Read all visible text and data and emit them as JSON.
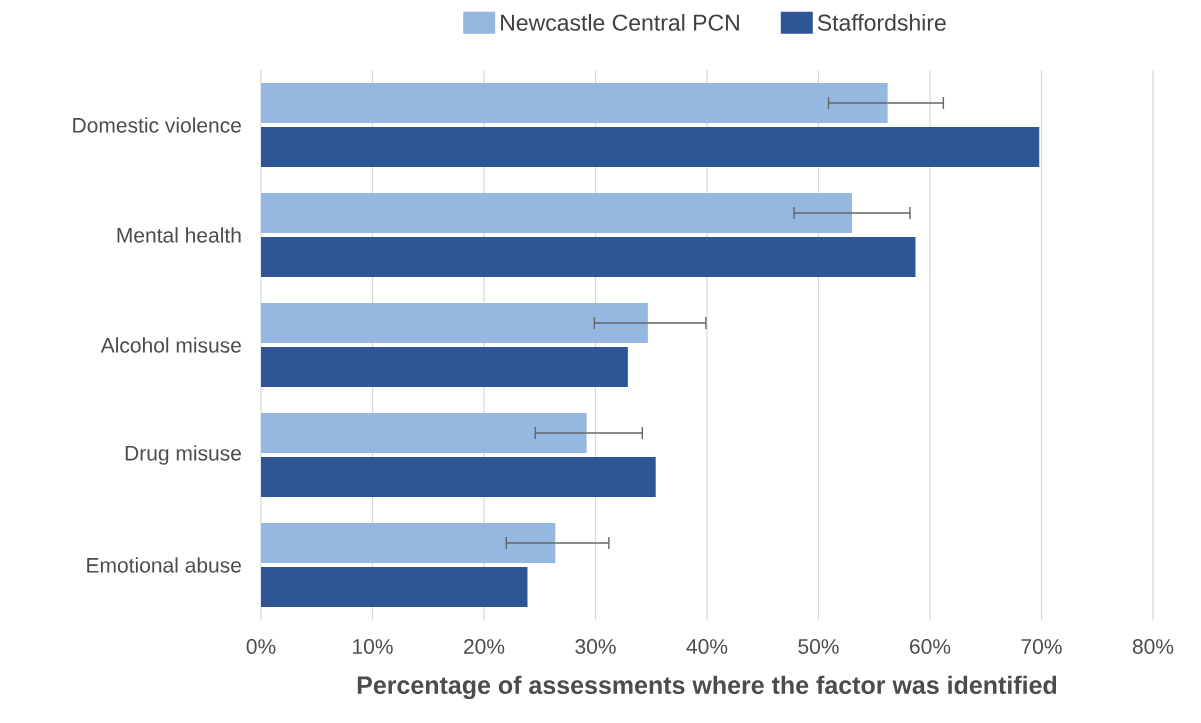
{
  "chart_data": {
    "type": "bar",
    "orientation": "horizontal",
    "xlabel": "Percentage of assessments where the factor was identified",
    "categories": [
      "Domestic violence",
      "Mental health",
      "Alcohol misuse",
      "Drug misuse",
      "Emotional abuse"
    ],
    "series": [
      {
        "name": "Newcastle Central PCN",
        "color": "#95b8e0",
        "values": [
          56.2,
          53.0,
          34.7,
          29.2,
          26.4
        ],
        "errors": [
          [
            50.9,
            61.2
          ],
          [
            47.8,
            58.2
          ],
          [
            29.9,
            39.9
          ],
          [
            24.6,
            34.2
          ],
          [
            22.0,
            31.2
          ]
        ]
      },
      {
        "name": "Staffordshire",
        "color": "#2e5594",
        "values": [
          69.8,
          58.7,
          32.9,
          35.4,
          23.9
        ]
      }
    ],
    "xlim": [
      0,
      80
    ],
    "xticks": [
      {
        "value": 0,
        "label": "0%"
      },
      {
        "value": 10,
        "label": "10%"
      },
      {
        "value": 20,
        "label": "20%"
      },
      {
        "value": 30,
        "label": "30%"
      },
      {
        "value": 40,
        "label": "40%"
      },
      {
        "value": 50,
        "label": "50%"
      },
      {
        "value": 60,
        "label": "60%"
      },
      {
        "value": 70,
        "label": "70%"
      },
      {
        "value": 80,
        "label": "80%"
      }
    ],
    "grid": "x",
    "legend": "top"
  }
}
